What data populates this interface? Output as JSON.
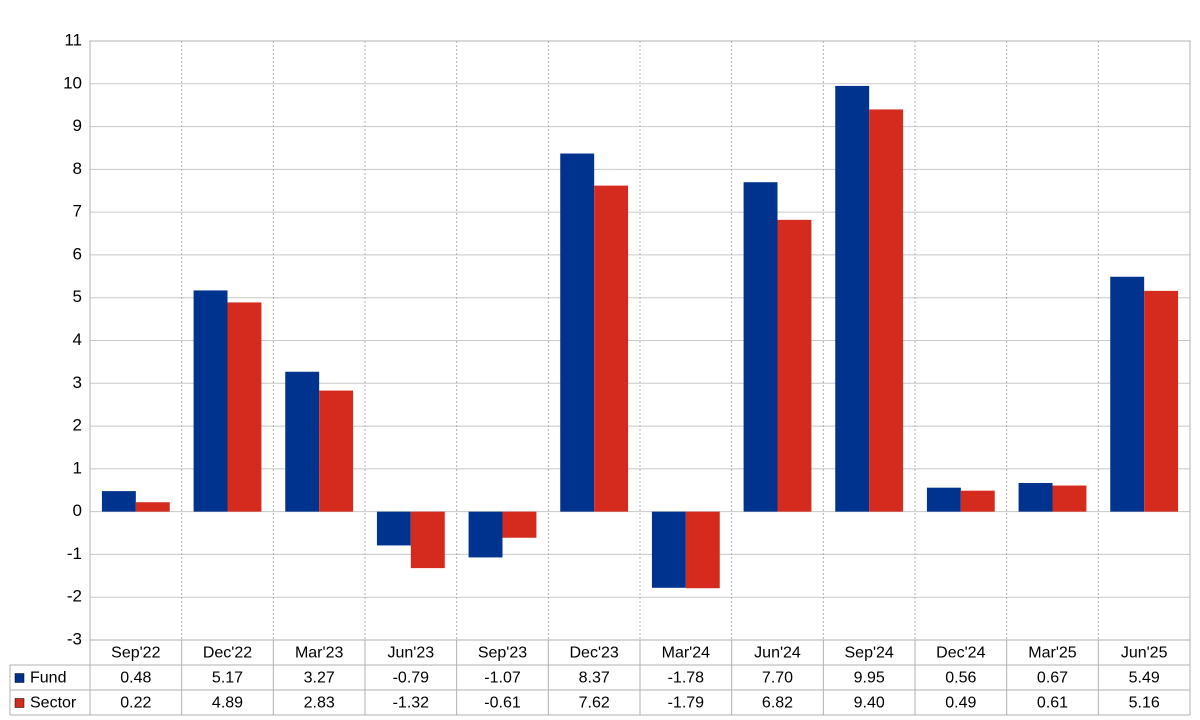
{
  "chart_data": {
    "type": "bar",
    "categories": [
      "Sep'22",
      "Dec'22",
      "Mar'23",
      "Jun'23",
      "Sep'23",
      "Dec'23",
      "Mar'24",
      "Jun'24",
      "Sep'24",
      "Dec'24",
      "Mar'25",
      "Jun'25"
    ],
    "series": [
      {
        "name": "Fund",
        "color": "#00338d",
        "values": [
          0.48,
          5.17,
          3.27,
          -0.79,
          -1.07,
          8.37,
          -1.78,
          7.7,
          9.95,
          0.56,
          0.67,
          5.49
        ],
        "value_labels": [
          "0.48",
          "5.17",
          "3.27",
          "-0.79",
          "-1.07",
          "8.37",
          "-1.78",
          "7.70",
          "9.95",
          "0.56",
          "0.67",
          "5.49"
        ]
      },
      {
        "name": "Sector",
        "color": "#d52b1e",
        "values": [
          0.22,
          4.89,
          2.83,
          -1.32,
          -0.61,
          7.62,
          -1.79,
          6.82,
          9.4,
          0.49,
          0.61,
          5.16
        ],
        "value_labels": [
          "0.22",
          "4.89",
          "2.83",
          "-1.32",
          "-0.61",
          "7.62",
          "-1.79",
          "6.82",
          "9.40",
          "0.49",
          "0.61",
          "5.16"
        ]
      }
    ],
    "ylim": [
      -3,
      11
    ],
    "yticks": [
      -3,
      -2,
      -1,
      0,
      1,
      2,
      3,
      4,
      5,
      6,
      7,
      8,
      9,
      10,
      11
    ],
    "grid": true
  }
}
